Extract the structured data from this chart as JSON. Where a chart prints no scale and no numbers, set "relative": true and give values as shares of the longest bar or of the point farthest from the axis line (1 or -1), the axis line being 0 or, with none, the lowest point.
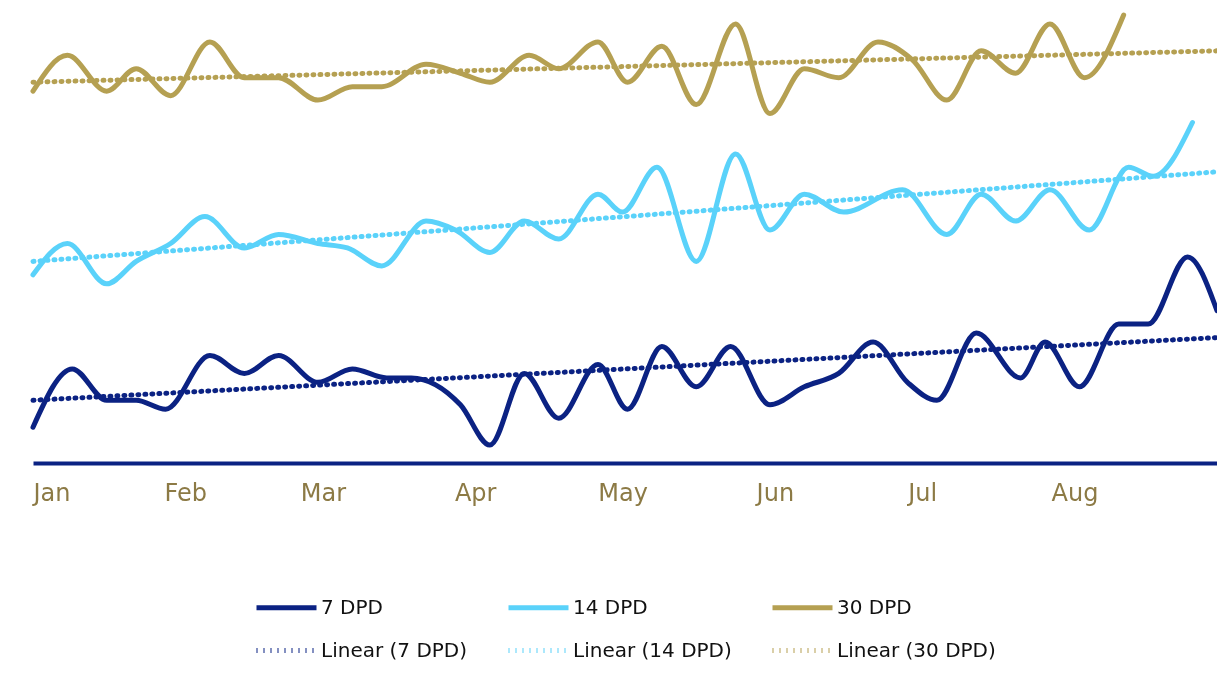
{
  "chart_data": {
    "type": "line",
    "relative": true,
    "legend": "bottom",
    "grid": false,
    "xlim": [
      "--01-01",
      "--08-30"
    ],
    "xticks": [
      {
        "value": "--01-01",
        "label": "Jan"
      },
      {
        "value": "--02-01",
        "label": "Feb"
      },
      {
        "value": "--03-01",
        "label": "Mar"
      },
      {
        "value": "--04-01",
        "label": "Apr"
      },
      {
        "value": "--05-01",
        "label": "May"
      },
      {
        "value": "--06-01",
        "label": "Jun"
      },
      {
        "value": "--07-01",
        "label": "Jul"
      },
      {
        "value": "--08-01",
        "label": "Aug"
      }
    ],
    "series": [
      {
        "name": "7 DPD",
        "color": "#0b2283",
        "line_style": "solid",
        "x": [
          "--01-01",
          "--01-09",
          "--01-16",
          "--01-22",
          "--01-28",
          "--02-06",
          "--02-13",
          "--02-20",
          "--02-28",
          "--03-07",
          "--03-14",
          "--03-19",
          "--03-29",
          "--04-04",
          "--04-11",
          "--04-18",
          "--04-26",
          "--05-02",
          "--05-09",
          "--05-16",
          "--05-23",
          "--05-31",
          "--06-07",
          "--06-14",
          "--06-21",
          "--06-28",
          "--07-04",
          "--07-12",
          "--07-21",
          "--07-26",
          "--08-02",
          "--08-10",
          "--08-16",
          "--08-24",
          "--08-30"
        ],
        "values": [
          0.08,
          0.21,
          0.14,
          0.14,
          0.12,
          0.24,
          0.2,
          0.24,
          0.18,
          0.21,
          0.19,
          0.19,
          0.13,
          0.04,
          0.2,
          0.1,
          0.22,
          0.12,
          0.26,
          0.17,
          0.26,
          0.13,
          0.17,
          0.2,
          0.27,
          0.18,
          0.14,
          0.29,
          0.19,
          0.27,
          0.17,
          0.31,
          0.31,
          0.46,
          0.34
        ]
      },
      {
        "name": "14 DPD",
        "color": "#5ad2fa",
        "line_style": "solid",
        "x": [
          "--01-01",
          "--01-08",
          "--01-16",
          "--01-22",
          "--01-29",
          "--02-05",
          "--02-13",
          "--02-20",
          "--02-28",
          "--03-06",
          "--03-13",
          "--03-22",
          "--03-28",
          "--04-04",
          "--04-11",
          "--04-18",
          "--04-26",
          "--05-01",
          "--05-08",
          "--05-16",
          "--05-24",
          "--05-31",
          "--06-07",
          "--06-15",
          "--06-27",
          "--07-06",
          "--07-13",
          "--07-20",
          "--07-27",
          "--08-04",
          "--08-12",
          "--08-17",
          "--08-25"
        ],
        "values": [
          0.42,
          0.49,
          0.4,
          0.45,
          0.49,
          0.55,
          0.48,
          0.51,
          0.49,
          0.48,
          0.44,
          0.54,
          0.52,
          0.47,
          0.54,
          0.5,
          0.6,
          0.56,
          0.66,
          0.45,
          0.69,
          0.52,
          0.6,
          0.56,
          0.61,
          0.51,
          0.6,
          0.54,
          0.61,
          0.52,
          0.66,
          0.64,
          0.76
        ]
      },
      {
        "name": "30 DPD",
        "color": "#b5a052",
        "line_style": "solid",
        "x": [
          "--01-01",
          "--01-08",
          "--01-16",
          "--01-22",
          "--01-29",
          "--02-06",
          "--02-13",
          "--02-20",
          "--02-28",
          "--03-07",
          "--03-13",
          "--03-22",
          "--03-29",
          "--04-04",
          "--04-12",
          "--04-18",
          "--04-26",
          "--05-02",
          "--05-09",
          "--05-16",
          "--05-24",
          "--05-31",
          "--06-07",
          "--06-14",
          "--06-22",
          "--06-29",
          "--07-06",
          "--07-13",
          "--07-20",
          "--07-27",
          "--08-03",
          "--08-11"
        ],
        "values": [
          0.83,
          0.91,
          0.83,
          0.88,
          0.82,
          0.94,
          0.86,
          0.86,
          0.81,
          0.84,
          0.84,
          0.89,
          0.87,
          0.85,
          0.91,
          0.88,
          0.94,
          0.85,
          0.93,
          0.8,
          0.98,
          0.78,
          0.88,
          0.86,
          0.94,
          0.9,
          0.81,
          0.92,
          0.87,
          0.98,
          0.86,
          1.0
        ]
      },
      {
        "name": "Linear (7 DPD)",
        "color": "#0b2283",
        "line_style": "dotted",
        "x": [
          "--01-01",
          "--08-30"
        ],
        "values": [
          0.14,
          0.28
        ]
      },
      {
        "name": "Linear (14 DPD)",
        "color": "#5ad2fa",
        "line_style": "dotted",
        "x": [
          "--01-01",
          "--08-30"
        ],
        "values": [
          0.45,
          0.65
        ]
      },
      {
        "name": "Linear (30 DPD)",
        "color": "#b5a052",
        "line_style": "dotted",
        "x": [
          "--01-01",
          "--08-30"
        ],
        "values": [
          0.85,
          0.92
        ]
      }
    ]
  }
}
